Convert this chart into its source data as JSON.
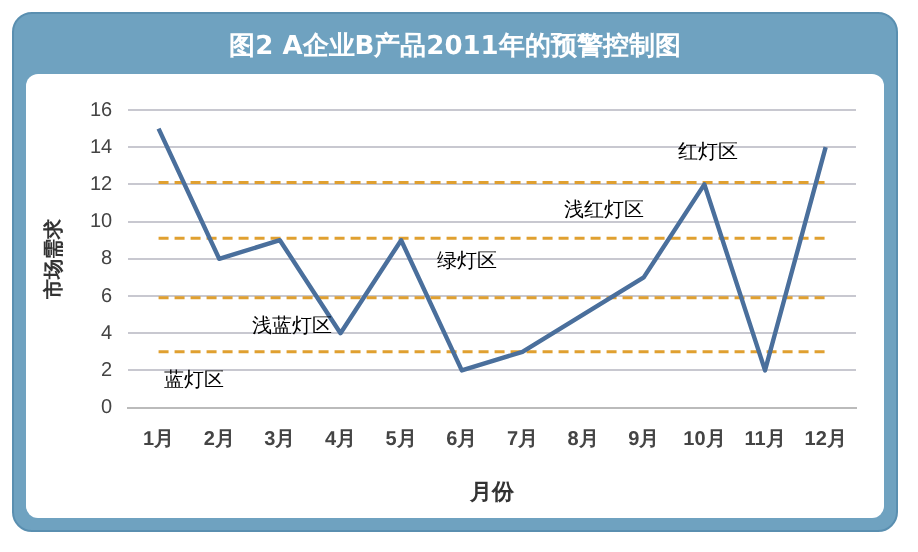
{
  "chart_data": {
    "type": "line",
    "title": "图2 A企业B产品2011年的预警控制图",
    "xlabel": "月份",
    "ylabel": "市场需求",
    "categories": [
      "1月",
      "2月",
      "3月",
      "4月",
      "5月",
      "6月",
      "7月",
      "8月",
      "9月",
      "10月",
      "11月",
      "12月"
    ],
    "series": [
      {
        "color": "#4a6f9c",
        "values": [
          15,
          8,
          9,
          4,
          9,
          2,
          3,
          5,
          7,
          12,
          2,
          14
        ]
      }
    ],
    "ylim": [
      0,
      16
    ],
    "yticks": [
      0,
      2,
      4,
      6,
      8,
      10,
      12,
      14,
      16
    ],
    "grid": "y",
    "legend": false,
    "marker": "none",
    "line_style": "solid",
    "ref_lines": [
      {
        "axis": "y",
        "value": 3,
        "color": "#e0a030",
        "line_style": "dashed"
      },
      {
        "axis": "y",
        "value": 5.9,
        "color": "#e0a030",
        "line_style": "dashed"
      },
      {
        "axis": "y",
        "value": 9.1,
        "color": "#e0a030",
        "line_style": "dashed"
      },
      {
        "axis": "y",
        "value": 12.1,
        "color": "#e0a030",
        "line_style": "dashed"
      }
    ],
    "annotations": [
      "蓝灯区",
      "浅蓝灯区",
      "绿灯区",
      "浅红灯区",
      "红灯区"
    ]
  }
}
